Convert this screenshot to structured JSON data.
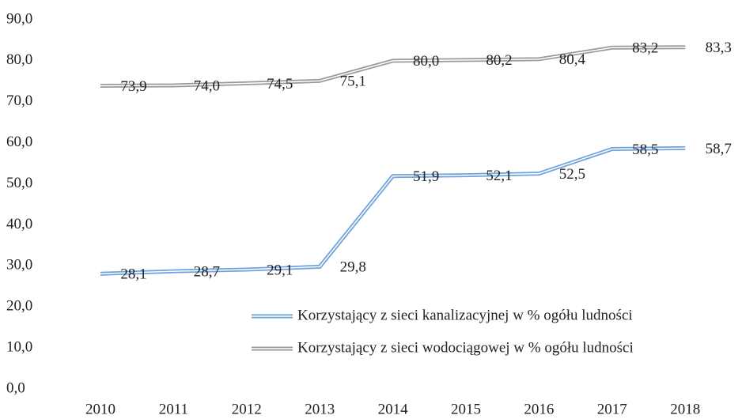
{
  "chart_data": {
    "type": "line",
    "categories": [
      "2010",
      "2011",
      "2012",
      "2013",
      "2014",
      "2015",
      "2016",
      "2017",
      "2018"
    ],
    "series": [
      {
        "name": "Korzystający z sieci kanalizacyjnej w % ogółu ludności",
        "color": "#6fa3dc",
        "values": [
          28.1,
          28.7,
          29.1,
          29.8,
          51.9,
          52.1,
          52.5,
          58.5,
          58.7
        ],
        "value_labels": [
          "28,1",
          "28,7",
          "29,1",
          "29,8",
          "51,9",
          "52,1",
          "52,5",
          "58,5",
          "58,7"
        ]
      },
      {
        "name": "Korzystający z sieci wodociągowej w % ogółu ludności",
        "color": "#9a9a9a",
        "values": [
          73.9,
          74.0,
          74.5,
          75.1,
          80.0,
          80.2,
          80.4,
          83.2,
          83.3
        ],
        "value_labels": [
          "73,9",
          "74,0",
          "74,5",
          "75,1",
          "80,0",
          "80,2",
          "80,4",
          "83,2",
          "83,3"
        ]
      }
    ],
    "ylim": [
      0,
      90
    ],
    "yticks": [
      {
        "value": 0,
        "label": "0,0"
      },
      {
        "value": 10,
        "label": "10,0"
      },
      {
        "value": 20,
        "label": "20,0"
      },
      {
        "value": 30,
        "label": "30,0"
      },
      {
        "value": 40,
        "label": "40,0"
      },
      {
        "value": 50,
        "label": "50,0"
      },
      {
        "value": 60,
        "label": "60,0"
      },
      {
        "value": 70,
        "label": "70,0"
      },
      {
        "value": 80,
        "label": "80,0"
      },
      {
        "value": 90,
        "label": "90,0"
      }
    ],
    "grid": false,
    "legend": "lower right"
  }
}
